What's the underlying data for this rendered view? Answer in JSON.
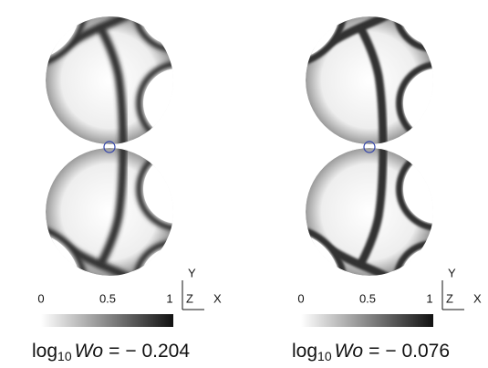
{
  "panels": [
    {
      "colorbar_ticks": [
        "0",
        "0.5",
        "1"
      ],
      "axes": {
        "y": "Y",
        "z": "Z",
        "x": "X"
      },
      "caption": {
        "log": "log",
        "base": "10",
        "symbol": "Wo",
        "equals": "=",
        "value": "− 0.204"
      }
    },
    {
      "colorbar_ticks": [
        "0",
        "0.5",
        "1"
      ],
      "axes": {
        "y": "Y",
        "z": "Z",
        "x": "X"
      },
      "caption": {
        "log": "log",
        "base": "10",
        "symbol": "Wo",
        "equals": "=",
        "value": "− 0.076"
      }
    }
  ]
}
